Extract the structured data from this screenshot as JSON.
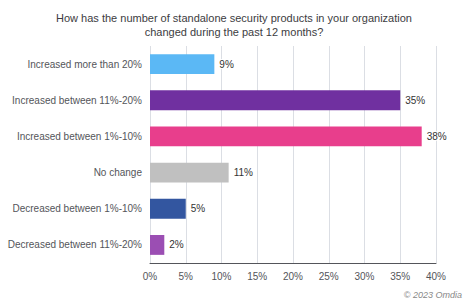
{
  "chart_data": {
    "type": "bar",
    "orientation": "horizontal",
    "title": "How has the number of standalone security products in your organization\nchanged during the past 12 months?",
    "categories": [
      "Increased more than 20%",
      "Increased between 11%-20%",
      "Increased between 1%-10%",
      "No change",
      "Decreased between 1%-10%",
      "Decreased between 11%-20%"
    ],
    "values": [
      9,
      35,
      38,
      11,
      5,
      2
    ],
    "value_labels": [
      "9%",
      "35%",
      "38%",
      "11%",
      "5%",
      "2%"
    ],
    "colors": [
      "#5bb8f5",
      "#7030a0",
      "#e83e8c",
      "#c0c0c0",
      "#3356a0",
      "#9b4eb3"
    ],
    "xlim": [
      0,
      40
    ],
    "xticks": [
      {
        "value": 0,
        "label": "0%"
      },
      {
        "value": 5,
        "label": "5%"
      },
      {
        "value": 10,
        "label": "10%"
      },
      {
        "value": 15,
        "label": "15%"
      },
      {
        "value": 20,
        "label": "20%"
      },
      {
        "value": 25,
        "label": "25%"
      },
      {
        "value": 30,
        "label": "30%"
      },
      {
        "value": 35,
        "label": "35%"
      },
      {
        "value": 40,
        "label": "40%"
      }
    ],
    "grid": true,
    "data_labels": true,
    "annotation": "© 2023 Omdia"
  }
}
